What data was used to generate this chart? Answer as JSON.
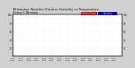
{
  "title": "Milwaukee Weather Outdoor Humidity",
  "title2": "vs Temperature",
  "title3": "Every 5 Minutes",
  "title_fontsize": 2.8,
  "bg_color": "#d0d0d0",
  "plot_bg_color": "#ffffff",
  "humidity_color": "#0000cc",
  "temp_color": "#cc0000",
  "legend_humidity_label": "Humidity",
  "legend_temp_label": "Outdoor Temp",
  "ylim_left": [
    0,
    100
  ],
  "ylim_right": [
    0,
    100
  ],
  "yticks": [
    20,
    40,
    60,
    80,
    100
  ],
  "marker_size": 0.4,
  "n_days": 14,
  "seed": 123
}
